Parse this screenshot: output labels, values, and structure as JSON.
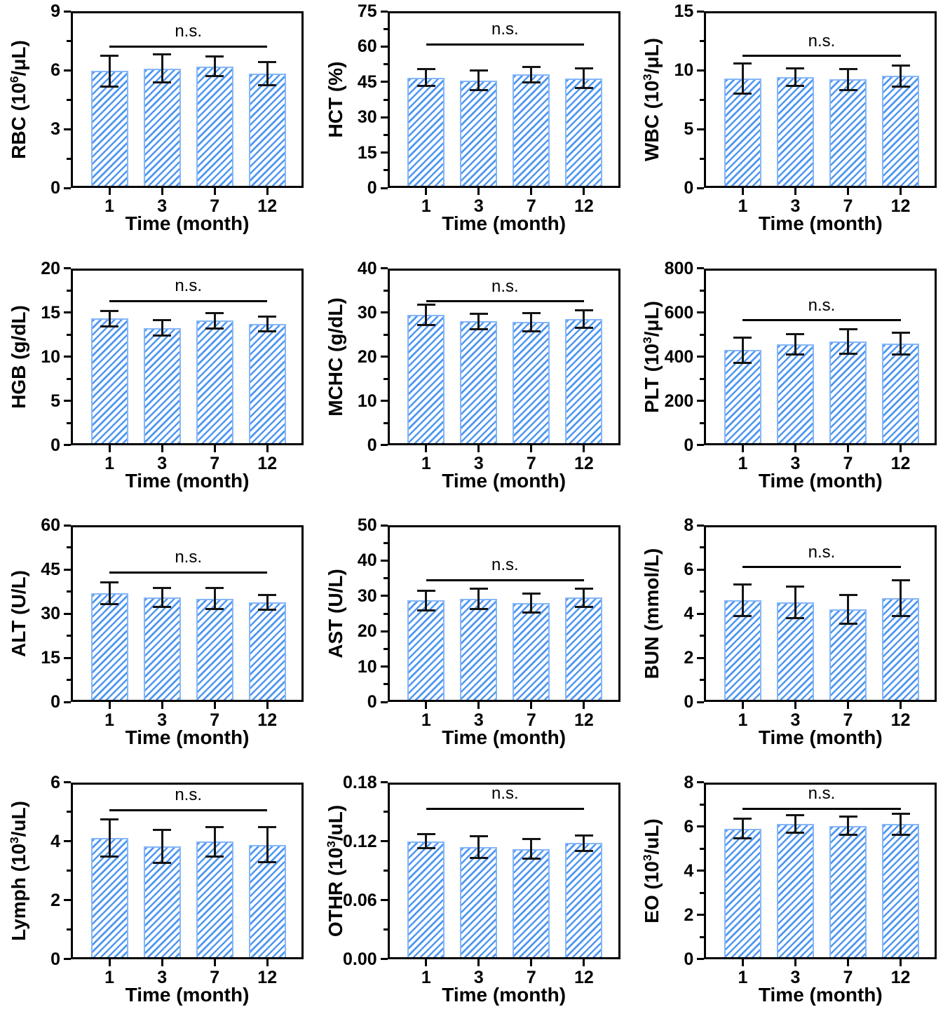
{
  "figure": {
    "xlabel": "Time (month)",
    "annotation": "n.s.",
    "categories": [
      "1",
      "3",
      "7",
      "12"
    ],
    "colors": {
      "bar_hatch": "#4f97f0",
      "bar_edge": "#85b6f8",
      "error_bar": "#141414",
      "axis": "#000000",
      "background": "#ffffff"
    }
  },
  "chart_data": [
    {
      "type": "bar",
      "title": "RBC",
      "ylabel": "RBC (10^6/uL)",
      "ylabel_parts": {
        "pre": "RBC (10",
        "sup": "6",
        "post": "/μL)"
      },
      "xlabel": "Time (month)",
      "categories": [
        "1",
        "3",
        "7",
        "12"
      ],
      "values": [
        5.95,
        6.08,
        6.18,
        5.82
      ],
      "errors": [
        0.78,
        0.71,
        0.5,
        0.6
      ],
      "ylim": [
        0,
        9
      ],
      "yticks": [
        0,
        3,
        6,
        9
      ],
      "ytick_labels": [
        "0",
        "3",
        "6",
        "9"
      ],
      "annotation": "n.s.",
      "ns_line_y": 7.2
    },
    {
      "type": "bar",
      "title": "HCT",
      "ylabel": "HCT (%)",
      "ylabel_parts": {
        "pre": "HCT (%)",
        "sup": "",
        "post": ""
      },
      "xlabel": "Time (month)",
      "categories": [
        "1",
        "3",
        "7",
        "12"
      ],
      "values": [
        46.8,
        45.6,
        48.1,
        46.5
      ],
      "errors": [
        3.6,
        4.2,
        3.3,
        4.2
      ],
      "ylim": [
        0,
        75
      ],
      "yticks": [
        0,
        15,
        30,
        45,
        60,
        75
      ],
      "ytick_labels": [
        "0",
        "15",
        "30",
        "45",
        "60",
        "75"
      ],
      "annotation": "n.s.",
      "ns_line_y": 61
    },
    {
      "type": "bar",
      "title": "WBC",
      "ylabel": "WBC (10^3/uL)",
      "ylabel_parts": {
        "pre": "WBC (10",
        "sup": "3",
        "post": "/μL)"
      },
      "xlabel": "Time (month)",
      "categories": [
        "1",
        "3",
        "7",
        "12"
      ],
      "values": [
        9.3,
        9.4,
        9.2,
        9.5
      ],
      "errors": [
        1.27,
        0.74,
        0.9,
        0.9
      ],
      "ylim": [
        0,
        15
      ],
      "yticks": [
        0,
        5,
        10,
        15
      ],
      "ytick_labels": [
        "0",
        "5",
        "10",
        "15"
      ],
      "annotation": "n.s.",
      "ns_line_y": 11.2
    },
    {
      "type": "bar",
      "title": "HGB",
      "ylabel": "HGB (g/dL)",
      "ylabel_parts": {
        "pre": "HGB (g/dL)",
        "sup": "",
        "post": ""
      },
      "xlabel": "Time (month)",
      "categories": [
        "1",
        "3",
        "7",
        "12"
      ],
      "values": [
        14.3,
        13.25,
        14.05,
        13.7
      ],
      "errors": [
        0.85,
        0.85,
        0.9,
        0.85
      ],
      "ylim": [
        0,
        20
      ],
      "yticks": [
        0,
        5,
        10,
        15,
        20
      ],
      "ytick_labels": [
        "0",
        "5",
        "10",
        "15",
        "20"
      ],
      "annotation": "n.s.",
      "ns_line_y": 16.3
    },
    {
      "type": "bar",
      "title": "MCHC",
      "ylabel": "MCHC (g/dL)",
      "ylabel_parts": {
        "pre": "MCHC (g/dL)",
        "sup": "",
        "post": ""
      },
      "xlabel": "Time (month)",
      "categories": [
        "1",
        "3",
        "7",
        "12"
      ],
      "values": [
        29.4,
        28.0,
        27.8,
        28.5
      ],
      "errors": [
        2.3,
        1.75,
        2.1,
        2.0
      ],
      "ylim": [
        0,
        40
      ],
      "yticks": [
        0,
        10,
        20,
        30,
        40
      ],
      "ytick_labels": [
        "0",
        "10",
        "20",
        "30",
        "40"
      ],
      "annotation": "n.s.",
      "ns_line_y": 32.5
    },
    {
      "type": "bar",
      "title": "PLT",
      "ylabel": "PLT (10^3/uL)",
      "ylabel_parts": {
        "pre": "PLT (10",
        "sup": "3",
        "post": "/μL)"
      },
      "xlabel": "Time (month)",
      "categories": [
        "1",
        "3",
        "7",
        "12"
      ],
      "values": [
        429,
        455,
        468,
        460
      ],
      "errors": [
        58,
        47,
        56,
        49
      ],
      "ylim": [
        0,
        800
      ],
      "yticks": [
        0,
        200,
        400,
        600,
        800
      ],
      "ytick_labels": [
        "0",
        "200",
        "400",
        "600",
        "800"
      ],
      "annotation": "n.s.",
      "ns_line_y": 565
    },
    {
      "type": "bar",
      "title": "ALT",
      "ylabel": "ALT (U/L)",
      "ylabel_parts": {
        "pre": "ALT (U/L)",
        "sup": "",
        "post": ""
      },
      "xlabel": "Time (month)",
      "categories": [
        "1",
        "3",
        "7",
        "12"
      ],
      "values": [
        36.9,
        35.5,
        35.1,
        33.7
      ],
      "errors": [
        3.8,
        3.3,
        3.6,
        2.5
      ],
      "ylim": [
        0,
        60
      ],
      "yticks": [
        0,
        15,
        30,
        45,
        60
      ],
      "ytick_labels": [
        "0",
        "15",
        "30",
        "45",
        "60"
      ],
      "annotation": "n.s.",
      "ns_line_y": 44
    },
    {
      "type": "bar",
      "title": "AST",
      "ylabel": "AST (U/L)",
      "ylabel_parts": {
        "pre": "AST (U/L)",
        "sup": "",
        "post": ""
      },
      "xlabel": "Time (month)",
      "categories": [
        "1",
        "3",
        "7",
        "12"
      ],
      "values": [
        28.7,
        29.1,
        27.9,
        29.5
      ],
      "errors": [
        2.8,
        2.9,
        2.7,
        2.6
      ],
      "ylim": [
        0,
        50
      ],
      "yticks": [
        0,
        10,
        20,
        30,
        40,
        50
      ],
      "ytick_labels": [
        "0",
        "10",
        "20",
        "30",
        "40",
        "50"
      ],
      "annotation": "n.s.",
      "ns_line_y": 34.5
    },
    {
      "type": "bar",
      "title": "BUN",
      "ylabel": "BUN (mmol/L)",
      "ylabel_parts": {
        "pre": "BUN (mmol/L)",
        "sup": "",
        "post": ""
      },
      "xlabel": "Time (month)",
      "categories": [
        "1",
        "3",
        "7",
        "12"
      ],
      "values": [
        4.6,
        4.5,
        4.2,
        4.7
      ],
      "errors": [
        0.72,
        0.72,
        0.65,
        0.8
      ],
      "ylim": [
        0,
        8
      ],
      "yticks": [
        0,
        2,
        4,
        6,
        8
      ],
      "ytick_labels": [
        "0",
        "2",
        "4",
        "6",
        "8"
      ],
      "annotation": "n.s.",
      "ns_line_y": 6.1
    },
    {
      "type": "bar",
      "title": "Lymph",
      "ylabel": "Lymph (10^3/uL)",
      "ylabel_parts": {
        "pre": "Lymph (10",
        "sup": "3",
        "post": "/uL)"
      },
      "xlabel": "Time (month)",
      "categories": [
        "1",
        "3",
        "7",
        "12"
      ],
      "values": [
        4.1,
        3.82,
        3.98,
        3.88
      ],
      "errors": [
        0.63,
        0.55,
        0.5,
        0.59
      ],
      "ylim": [
        0,
        6
      ],
      "yticks": [
        0,
        2,
        4,
        6
      ],
      "ytick_labels": [
        "0",
        "2",
        "4",
        "6"
      ],
      "annotation": "n.s.",
      "ns_line_y": 5.05
    },
    {
      "type": "bar",
      "title": "OTHR",
      "ylabel": "OTHR (10^3/uL)",
      "ylabel_parts": {
        "pre": "OTHR (10",
        "sup": "3",
        "post": "/uL)"
      },
      "xlabel": "Time (month)",
      "categories": [
        "1",
        "3",
        "7",
        "12"
      ],
      "values": [
        0.12,
        0.114,
        0.112,
        0.118
      ],
      "errors": [
        0.007,
        0.011,
        0.01,
        0.008
      ],
      "ylim": [
        0,
        0.18
      ],
      "yticks": [
        0,
        0.06,
        0.12,
        0.18
      ],
      "ytick_labels": [
        "0.00",
        "0.06",
        "0.12",
        "0.18"
      ],
      "annotation": "n.s.",
      "ns_line_y": 0.153
    },
    {
      "type": "bar",
      "title": "EO",
      "ylabel": "EO (10^3/uL)",
      "ylabel_parts": {
        "pre": "EO (10",
        "sup": "3",
        "post": "/uL)"
      },
      "xlabel": "Time (month)",
      "categories": [
        "1",
        "3",
        "7",
        "12"
      ],
      "values": [
        5.9,
        6.1,
        6.03,
        6.1
      ],
      "errors": [
        0.45,
        0.4,
        0.42,
        0.48
      ],
      "ylim": [
        0,
        8
      ],
      "yticks": [
        0,
        2,
        4,
        6,
        8
      ],
      "ytick_labels": [
        "0",
        "2",
        "4",
        "6",
        "8"
      ],
      "annotation": "n.s.",
      "ns_line_y": 6.8
    }
  ]
}
